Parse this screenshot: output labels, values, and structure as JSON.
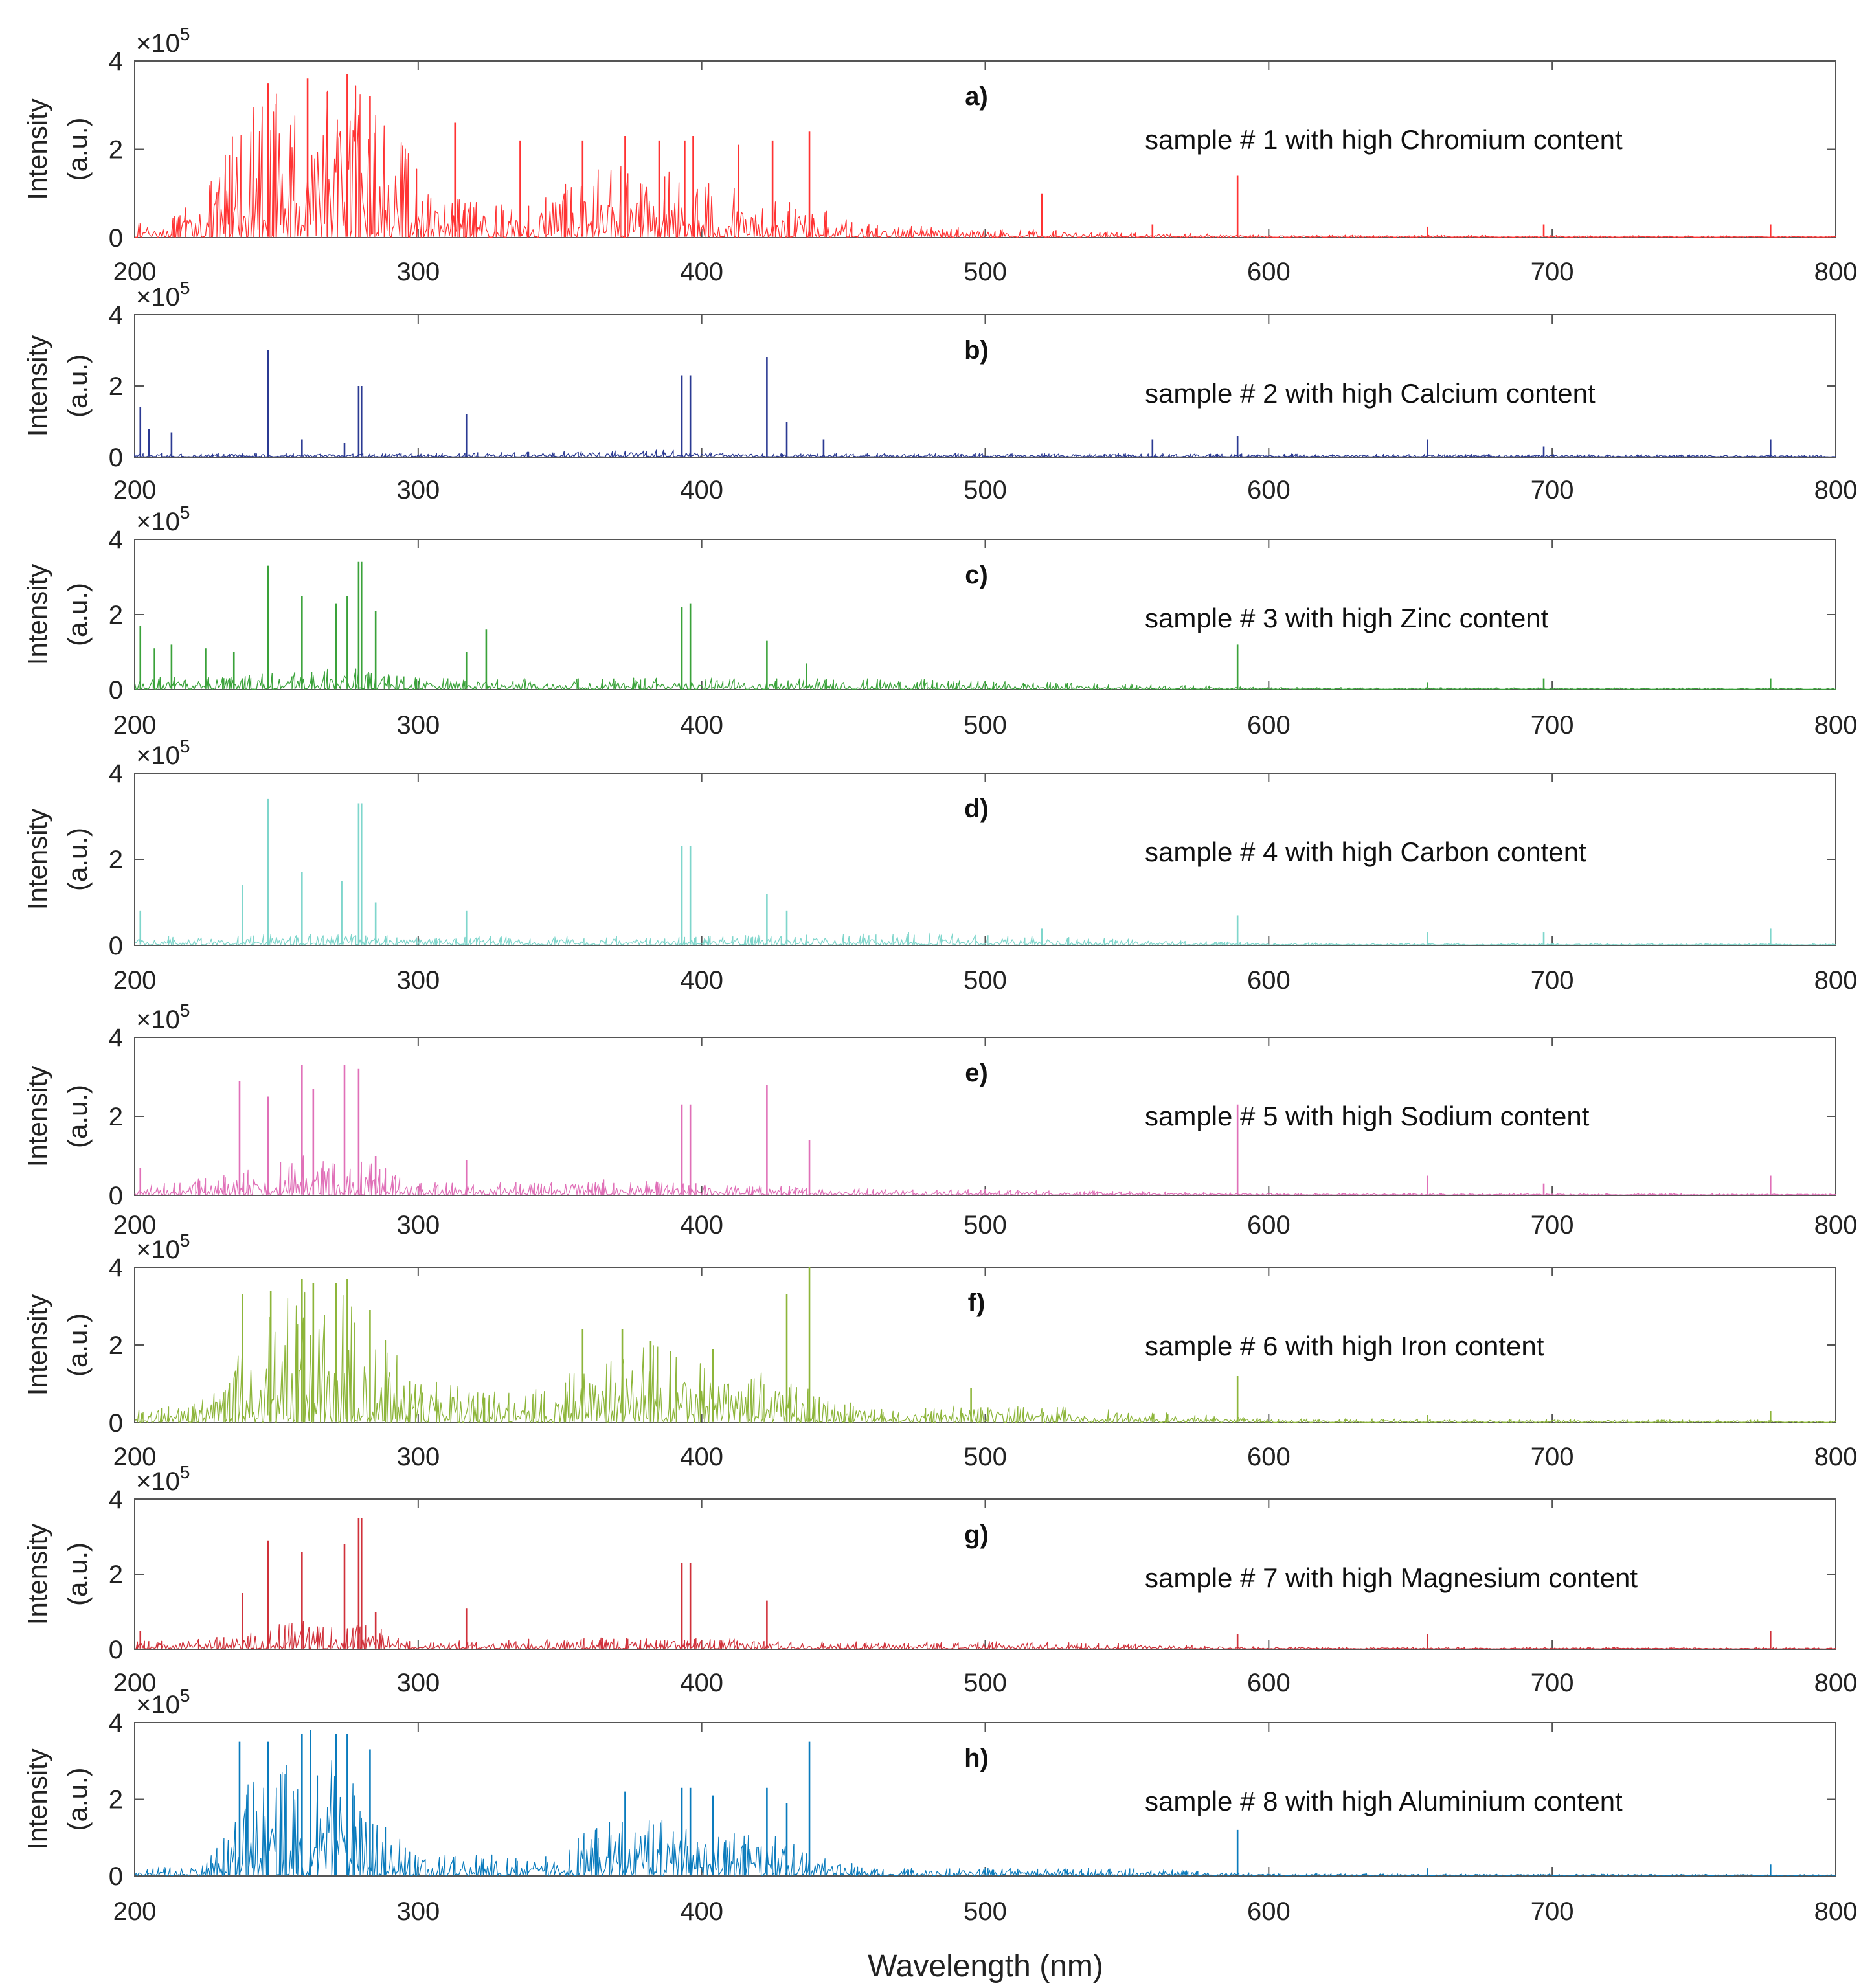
{
  "chart_data": [
    {
      "type": "line",
      "panel": "a)",
      "title": "sample # 1 with high Chromium content",
      "color": "#ff3333",
      "xlabel": "Wavelength (nm)",
      "ylabel": [
        "Intensity",
        "(a.u.)"
      ],
      "y_multiplier": "×10^5",
      "xlim": [
        200,
        800
      ],
      "ylim": [
        0,
        4
      ],
      "xticks": [
        200,
        300,
        400,
        500,
        600,
        700,
        800
      ],
      "yticks": [
        0,
        2,
        4
      ],
      "envelope": [
        [
          200,
          0.3
        ],
        [
          215,
          0.5
        ],
        [
          230,
          1.5
        ],
        [
          235,
          2.8
        ],
        [
          245,
          3.2
        ],
        [
          255,
          3.5
        ],
        [
          265,
          3.6
        ],
        [
          275,
          3.7
        ],
        [
          285,
          3.2
        ],
        [
          295,
          2.2
        ],
        [
          305,
          1.0
        ],
        [
          320,
          0.8
        ],
        [
          340,
          0.8
        ],
        [
          355,
          1.5
        ],
        [
          370,
          1.8
        ],
        [
          385,
          1.6
        ],
        [
          400,
          1.4
        ],
        [
          420,
          0.9
        ],
        [
          440,
          0.7
        ],
        [
          455,
          0.3
        ],
        [
          500,
          0.2
        ],
        [
          600,
          0.05
        ],
        [
          800,
          0.03
        ]
      ],
      "peaks": [
        [
          247,
          3.5
        ],
        [
          261,
          3.6
        ],
        [
          268,
          3.3
        ],
        [
          275,
          3.7
        ],
        [
          283,
          3.2
        ],
        [
          313,
          2.6
        ],
        [
          336,
          2.2
        ],
        [
          358,
          2.2
        ],
        [
          373,
          2.3
        ],
        [
          385,
          2.2
        ],
        [
          394,
          2.2
        ],
        [
          397,
          2.3
        ],
        [
          413,
          2.1
        ],
        [
          425,
          2.2
        ],
        [
          438,
          2.4
        ],
        [
          520,
          1.0
        ],
        [
          559,
          0.3
        ],
        [
          589,
          1.4
        ],
        [
          656,
          0.25
        ],
        [
          697,
          0.3
        ],
        [
          777,
          0.3
        ]
      ]
    },
    {
      "type": "line",
      "panel": "b)",
      "title": "sample # 2 with high Calcium content",
      "color": "#2b3a93",
      "xlabel": "Wavelength (nm)",
      "ylabel": [
        "Intensity",
        "(a.u.)"
      ],
      "y_multiplier": "×10^5",
      "xlim": [
        200,
        800
      ],
      "ylim": [
        0,
        4
      ],
      "xticks": [
        200,
        300,
        400,
        500,
        600,
        700,
        800
      ],
      "yticks": [
        0,
        2,
        4
      ],
      "envelope": [
        [
          200,
          0.1
        ],
        [
          300,
          0.1
        ],
        [
          390,
          0.2
        ],
        [
          420,
          0.1
        ],
        [
          500,
          0.1
        ],
        [
          800,
          0.05
        ]
      ],
      "peaks": [
        [
          202,
          1.4
        ],
        [
          205,
          0.8
        ],
        [
          213,
          0.7
        ],
        [
          247,
          3.0
        ],
        [
          259,
          0.5
        ],
        [
          274,
          0.4
        ],
        [
          279,
          2.0
        ],
        [
          280,
          2.0
        ],
        [
          317,
          1.2
        ],
        [
          393,
          2.3
        ],
        [
          396,
          2.3
        ],
        [
          423,
          2.8
        ],
        [
          430,
          1.0
        ],
        [
          443,
          0.5
        ],
        [
          559,
          0.5
        ],
        [
          589,
          0.6
        ],
        [
          656,
          0.5
        ],
        [
          697,
          0.3
        ],
        [
          777,
          0.5
        ]
      ]
    },
    {
      "type": "line",
      "panel": "c)",
      "title": "sample # 3 with high Zinc content",
      "color": "#3aa23a",
      "xlabel": "Wavelength (nm)",
      "ylabel": [
        "Intensity",
        "(a.u.)"
      ],
      "y_multiplier": "×10^5",
      "xlim": [
        200,
        800
      ],
      "ylim": [
        0,
        4
      ],
      "xticks": [
        200,
        300,
        400,
        500,
        600,
        700,
        800
      ],
      "yticks": [
        0,
        2,
        4
      ],
      "envelope": [
        [
          200,
          0.3
        ],
        [
          240,
          0.4
        ],
        [
          280,
          0.6
        ],
        [
          300,
          0.3
        ],
        [
          360,
          0.3
        ],
        [
          400,
          0.3
        ],
        [
          450,
          0.3
        ],
        [
          520,
          0.2
        ],
        [
          600,
          0.05
        ],
        [
          800,
          0.03
        ]
      ],
      "peaks": [
        [
          202,
          1.7
        ],
        [
          207,
          1.1
        ],
        [
          213,
          1.2
        ],
        [
          225,
          1.1
        ],
        [
          235,
          1.0
        ],
        [
          247,
          3.3
        ],
        [
          259,
          2.5
        ],
        [
          271,
          2.3
        ],
        [
          275,
          2.5
        ],
        [
          279,
          3.4
        ],
        [
          280,
          3.4
        ],
        [
          285,
          2.1
        ],
        [
          317,
          1.0
        ],
        [
          324,
          1.6
        ],
        [
          393,
          2.2
        ],
        [
          396,
          2.3
        ],
        [
          423,
          1.3
        ],
        [
          437,
          0.7
        ],
        [
          589,
          1.2
        ],
        [
          656,
          0.2
        ],
        [
          697,
          0.3
        ],
        [
          777,
          0.3
        ]
      ]
    },
    {
      "type": "line",
      "panel": "d)",
      "title": "sample # 4 with high Carbon content",
      "color": "#7fd6cc",
      "xlabel": "Wavelength (nm)",
      "ylabel": [
        "Intensity",
        "(a.u.)"
      ],
      "y_multiplier": "×10^5",
      "xlim": [
        200,
        800
      ],
      "ylim": [
        0,
        4
      ],
      "xticks": [
        200,
        300,
        400,
        500,
        600,
        700,
        800
      ],
      "yticks": [
        0,
        2,
        4
      ],
      "envelope": [
        [
          200,
          0.2
        ],
        [
          280,
          0.3
        ],
        [
          300,
          0.2
        ],
        [
          400,
          0.2
        ],
        [
          470,
          0.3
        ],
        [
          520,
          0.2
        ],
        [
          600,
          0.05
        ],
        [
          800,
          0.03
        ]
      ],
      "peaks": [
        [
          202,
          0.8
        ],
        [
          238,
          1.4
        ],
        [
          247,
          3.4
        ],
        [
          259,
          1.7
        ],
        [
          273,
          1.5
        ],
        [
          279,
          3.3
        ],
        [
          280,
          3.3
        ],
        [
          285,
          1.0
        ],
        [
          317,
          0.8
        ],
        [
          393,
          2.3
        ],
        [
          396,
          2.3
        ],
        [
          423,
          1.2
        ],
        [
          430,
          0.8
        ],
        [
          520,
          0.4
        ],
        [
          589,
          0.7
        ],
        [
          656,
          0.3
        ],
        [
          697,
          0.3
        ],
        [
          777,
          0.4
        ]
      ]
    },
    {
      "type": "line",
      "panel": "e)",
      "title": "sample # 5  with high Sodium content",
      "color": "#e070b8",
      "xlabel": "Wavelength (nm)",
      "ylabel": [
        "Intensity",
        "(a.u.)"
      ],
      "y_multiplier": "×10^5",
      "xlim": [
        200,
        800
      ],
      "ylim": [
        0,
        4
      ],
      "xticks": [
        200,
        300,
        400,
        500,
        600,
        700,
        800
      ],
      "yticks": [
        0,
        2,
        4
      ],
      "envelope": [
        [
          200,
          0.2
        ],
        [
          230,
          0.5
        ],
        [
          260,
          1.0
        ],
        [
          285,
          0.8
        ],
        [
          300,
          0.3
        ],
        [
          360,
          0.4
        ],
        [
          400,
          0.3
        ],
        [
          450,
          0.2
        ],
        [
          600,
          0.05
        ],
        [
          800,
          0.03
        ]
      ],
      "peaks": [
        [
          202,
          0.7
        ],
        [
          237,
          2.9
        ],
        [
          247,
          2.5
        ],
        [
          259,
          3.3
        ],
        [
          263,
          2.7
        ],
        [
          274,
          3.3
        ],
        [
          279,
          3.2
        ],
        [
          285,
          1.0
        ],
        [
          317,
          0.9
        ],
        [
          393,
          2.3
        ],
        [
          396,
          2.3
        ],
        [
          423,
          2.8
        ],
        [
          438,
          1.4
        ],
        [
          589,
          2.3
        ],
        [
          656,
          0.5
        ],
        [
          697,
          0.3
        ],
        [
          777,
          0.5
        ]
      ]
    },
    {
      "type": "line",
      "panel": "f)",
      "title": "sample # 6 with high Iron content",
      "color": "#8db53a",
      "xlabel": "Wavelength (nm)",
      "ylabel": [
        "Intensity",
        "(a.u.)"
      ],
      "y_multiplier": "×10^5",
      "xlim": [
        200,
        800
      ],
      "ylim": [
        0,
        4
      ],
      "xticks": [
        200,
        300,
        400,
        500,
        600,
        700,
        800
      ],
      "yticks": [
        0,
        2,
        4
      ],
      "envelope": [
        [
          200,
          0.3
        ],
        [
          225,
          0.6
        ],
        [
          233,
          1.2
        ],
        [
          240,
          2.8
        ],
        [
          255,
          3.3
        ],
        [
          265,
          3.6
        ],
        [
          275,
          3.6
        ],
        [
          285,
          2.4
        ],
        [
          300,
          1.2
        ],
        [
          320,
          0.8
        ],
        [
          350,
          0.9
        ],
        [
          360,
          2.0
        ],
        [
          380,
          2.2
        ],
        [
          400,
          1.5
        ],
        [
          430,
          1.2
        ],
        [
          445,
          0.6
        ],
        [
          470,
          0.3
        ],
        [
          500,
          0.5
        ],
        [
          550,
          0.3
        ],
        [
          600,
          0.1
        ],
        [
          800,
          0.05
        ]
      ],
      "peaks": [
        [
          238,
          3.3
        ],
        [
          248,
          3.4
        ],
        [
          259,
          3.7
        ],
        [
          263,
          3.6
        ],
        [
          271,
          3.6
        ],
        [
          275,
          3.7
        ],
        [
          283,
          2.9
        ],
        [
          358,
          2.4
        ],
        [
          372,
          2.4
        ],
        [
          382,
          2.1
        ],
        [
          404,
          1.9
        ],
        [
          430,
          3.3
        ],
        [
          438,
          4.0
        ],
        [
          495,
          0.9
        ],
        [
          589,
          1.2
        ],
        [
          656,
          0.2
        ],
        [
          777,
          0.3
        ]
      ]
    },
    {
      "type": "line",
      "panel": "g)",
      "title": "sample # 7 with high Magnesium content",
      "color": "#d0313a",
      "xlabel": "Wavelength (nm)",
      "ylabel": [
        "Intensity",
        "(a.u.)"
      ],
      "y_multiplier": "×10^5",
      "xlim": [
        200,
        800
      ],
      "ylim": [
        0,
        4
      ],
      "xticks": [
        200,
        300,
        400,
        500,
        600,
        700,
        800
      ],
      "yticks": [
        0,
        2,
        4
      ],
      "envelope": [
        [
          200,
          0.2
        ],
        [
          235,
          0.4
        ],
        [
          260,
          0.8
        ],
        [
          285,
          0.6
        ],
        [
          300,
          0.2
        ],
        [
          360,
          0.3
        ],
        [
          400,
          0.3
        ],
        [
          450,
          0.2
        ],
        [
          520,
          0.2
        ],
        [
          600,
          0.05
        ],
        [
          800,
          0.03
        ]
      ],
      "peaks": [
        [
          202,
          0.5
        ],
        [
          238,
          1.5
        ],
        [
          247,
          2.9
        ],
        [
          259,
          2.6
        ],
        [
          274,
          2.8
        ],
        [
          279,
          3.5
        ],
        [
          280,
          3.5
        ],
        [
          285,
          1.0
        ],
        [
          317,
          1.1
        ],
        [
          393,
          2.3
        ],
        [
          396,
          2.3
        ],
        [
          423,
          1.3
        ],
        [
          589,
          0.4
        ],
        [
          656,
          0.4
        ],
        [
          777,
          0.5
        ]
      ]
    },
    {
      "type": "line",
      "panel": "h)",
      "title": "sample # 8 with high Aluminium content",
      "color": "#0a7bbd",
      "xlabel": "Wavelength (nm)",
      "ylabel": [
        "Intensity",
        "(a.u.)"
      ],
      "y_multiplier": "×10^5",
      "xlim": [
        200,
        800
      ],
      "ylim": [
        0,
        4
      ],
      "xticks": [
        200,
        300,
        400,
        500,
        600,
        700,
        800
      ],
      "yticks": [
        0,
        2,
        4
      ],
      "envelope": [
        [
          200,
          0.2
        ],
        [
          225,
          0.3
        ],
        [
          233,
          1.2
        ],
        [
          240,
          2.5
        ],
        [
          255,
          3.0
        ],
        [
          265,
          3.2
        ],
        [
          275,
          3.0
        ],
        [
          285,
          1.5
        ],
        [
          300,
          0.6
        ],
        [
          350,
          0.5
        ],
        [
          360,
          1.3
        ],
        [
          380,
          1.6
        ],
        [
          400,
          1.2
        ],
        [
          430,
          1.0
        ],
        [
          442,
          0.5
        ],
        [
          460,
          0.2
        ],
        [
          550,
          0.2
        ],
        [
          600,
          0.05
        ],
        [
          800,
          0.03
        ]
      ],
      "peaks": [
        [
          237,
          3.5
        ],
        [
          247,
          3.5
        ],
        [
          259,
          3.7
        ],
        [
          262,
          3.8
        ],
        [
          271,
          3.7
        ],
        [
          275,
          3.7
        ],
        [
          283,
          3.3
        ],
        [
          373,
          2.2
        ],
        [
          393,
          2.3
        ],
        [
          396,
          2.3
        ],
        [
          404,
          2.1
        ],
        [
          423,
          2.3
        ],
        [
          430,
          1.9
        ],
        [
          438,
          3.5
        ],
        [
          589,
          1.2
        ],
        [
          656,
          0.2
        ],
        [
          777,
          0.3
        ]
      ]
    }
  ],
  "axis": {
    "xlabel": "Wavelength (nm)",
    "ylabel_line1": "Intensity",
    "ylabel_line2": "(a.u.)",
    "multiplier_base": "×10",
    "multiplier_exp": "5"
  }
}
